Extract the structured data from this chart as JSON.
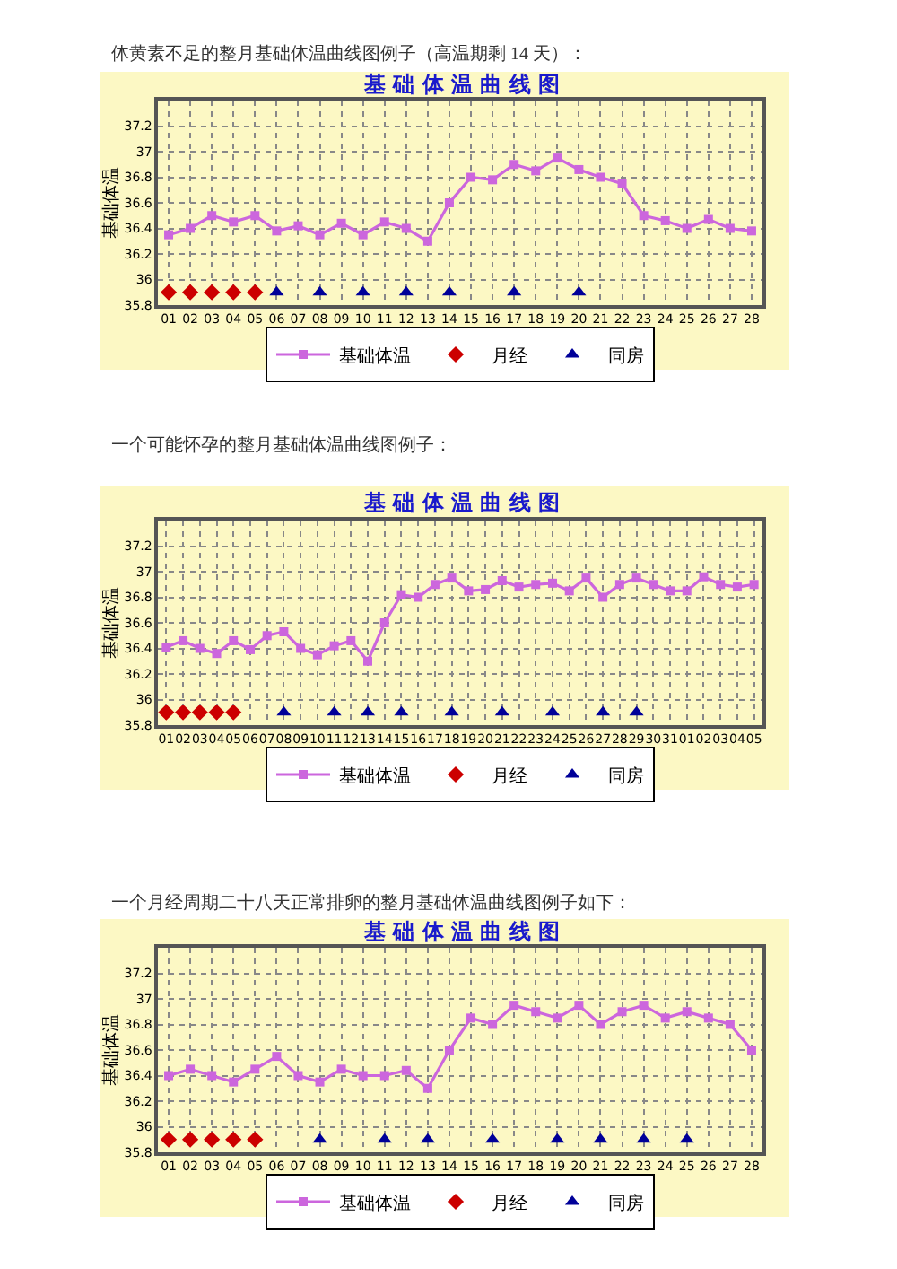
{
  "chart_data": [
    {
      "type": "line",
      "annotations": [
        "体黄素不足的整月基础体温曲线图例子（高温期剩 14 天）："
      ],
      "title": "基 础 体 温 曲 线 图",
      "ylabel": "基础体温",
      "categories": [
        "01",
        "02",
        "03",
        "04",
        "05",
        "06",
        "07",
        "08",
        "09",
        "10",
        "11",
        "12",
        "13",
        "14",
        "15",
        "16",
        "17",
        "18",
        "19",
        "20",
        "21",
        "22",
        "23",
        "24",
        "25",
        "26",
        "27",
        "28"
      ],
      "series": [
        {
          "name": "基础体温",
          "color": "#cc66dd",
          "marker": "square",
          "values": [
            36.35,
            36.4,
            36.5,
            36.45,
            36.5,
            36.38,
            36.42,
            36.35,
            36.44,
            36.35,
            36.45,
            36.4,
            36.3,
            36.6,
            36.8,
            36.78,
            36.9,
            36.85,
            36.95,
            36.86,
            36.8,
            36.75,
            36.5,
            36.46,
            36.4,
            36.47,
            36.4,
            36.38
          ]
        },
        {
          "name": "月经",
          "type": "scatter",
          "color": "#cc0000",
          "marker": "diamond",
          "values": [
            35.9,
            35.9,
            35.9,
            35.9,
            35.9,
            null,
            null,
            null,
            null,
            null,
            null,
            null,
            null,
            null,
            null,
            null,
            null,
            null,
            null,
            null,
            null,
            null,
            null,
            null,
            null,
            null,
            null,
            null
          ]
        },
        {
          "name": "同房",
          "type": "scatter",
          "color": "#000099",
          "marker": "triangle",
          "values": [
            null,
            null,
            null,
            null,
            null,
            35.9,
            null,
            35.9,
            null,
            35.9,
            null,
            35.9,
            null,
            35.9,
            null,
            null,
            35.9,
            null,
            null,
            35.9,
            null,
            null,
            null,
            null,
            null,
            null,
            null,
            null
          ]
        }
      ],
      "ylim": [
        35.8,
        37.4
      ],
      "yticks": [
        35.8,
        36,
        36.2,
        36.4,
        36.6,
        36.8,
        37,
        37.2
      ],
      "grid": true,
      "legend": "bottom",
      "line_style": "solid"
    },
    {
      "type": "line",
      "annotations": [
        "一个可能怀孕的整月基础体温曲线图例子："
      ],
      "title": "基 础 体 温 曲 线 图",
      "ylabel": "基础体温",
      "categories": [
        "01",
        "02",
        "03",
        "04",
        "05",
        "06",
        "07",
        "08",
        "09",
        "10",
        "11",
        "12",
        "13",
        "14",
        "15",
        "16",
        "17",
        "18",
        "19",
        "20",
        "21",
        "22",
        "23",
        "24",
        "25",
        "26",
        "27",
        "28",
        "29",
        "30",
        "31",
        "01",
        "02",
        "03",
        "04",
        "05"
      ],
      "series": [
        {
          "name": "基础体温",
          "color": "#cc66dd",
          "marker": "square",
          "values": [
            36.41,
            36.46,
            36.4,
            36.36,
            36.46,
            36.39,
            36.5,
            36.53,
            36.4,
            36.35,
            36.42,
            36.46,
            36.3,
            36.6,
            36.82,
            36.8,
            36.9,
            36.95,
            36.85,
            36.86,
            36.93,
            36.88,
            36.9,
            36.91,
            36.85,
            36.95,
            36.8,
            36.9,
            36.95,
            36.9,
            36.85,
            36.85,
            36.96,
            36.9,
            36.88,
            36.9
          ]
        },
        {
          "name": "月经",
          "type": "scatter",
          "color": "#cc0000",
          "marker": "diamond",
          "values": [
            35.9,
            35.9,
            35.9,
            35.9,
            35.9,
            null,
            null,
            null,
            null,
            null,
            null,
            null,
            null,
            null,
            null,
            null,
            null,
            null,
            null,
            null,
            null,
            null,
            null,
            null,
            null,
            null,
            null,
            null,
            null,
            null,
            null,
            null,
            null,
            null,
            null,
            null
          ]
        },
        {
          "name": "同房",
          "type": "scatter",
          "color": "#000099",
          "marker": "triangle",
          "values": [
            null,
            null,
            null,
            null,
            null,
            null,
            null,
            35.9,
            null,
            null,
            35.9,
            null,
            35.9,
            null,
            35.9,
            null,
            null,
            35.9,
            null,
            null,
            35.9,
            null,
            null,
            35.9,
            null,
            null,
            35.9,
            null,
            35.9,
            null,
            null,
            null,
            null,
            null,
            null,
            null
          ]
        }
      ],
      "ylim": [
        35.8,
        37.4
      ],
      "yticks": [
        35.8,
        36,
        36.2,
        36.4,
        36.6,
        36.8,
        37,
        37.2
      ],
      "grid": true,
      "legend": "bottom",
      "line_style": "solid"
    },
    {
      "type": "line",
      "annotations": [
        "一个月经周期二十八天正常排卵的整月基础体温曲线图例子如下："
      ],
      "title": "基 础 体 温 曲 线 图",
      "ylabel": "基础体温",
      "categories": [
        "01",
        "02",
        "03",
        "04",
        "05",
        "06",
        "07",
        "08",
        "09",
        "10",
        "11",
        "12",
        "13",
        "14",
        "15",
        "16",
        "17",
        "18",
        "19",
        "20",
        "21",
        "22",
        "23",
        "24",
        "25",
        "26",
        "27",
        "28"
      ],
      "series": [
        {
          "name": "基础体温",
          "color": "#cc66dd",
          "marker": "square",
          "values": [
            36.4,
            36.45,
            36.4,
            36.35,
            36.45,
            36.55,
            36.4,
            36.35,
            36.45,
            36.4,
            36.4,
            36.44,
            36.3,
            36.6,
            36.85,
            36.8,
            36.95,
            36.9,
            36.85,
            36.95,
            36.8,
            36.9,
            36.95,
            36.85,
            36.9,
            36.85,
            36.8,
            36.6
          ]
        },
        {
          "name": "月经",
          "type": "scatter",
          "color": "#cc0000",
          "marker": "diamond",
          "values": [
            35.9,
            35.9,
            35.9,
            35.9,
            35.9,
            null,
            null,
            null,
            null,
            null,
            null,
            null,
            null,
            null,
            null,
            null,
            null,
            null,
            null,
            null,
            null,
            null,
            null,
            null,
            null,
            null,
            null,
            null
          ]
        },
        {
          "name": "同房",
          "type": "scatter",
          "color": "#000099",
          "marker": "triangle",
          "values": [
            null,
            null,
            null,
            null,
            null,
            null,
            null,
            35.9,
            null,
            null,
            35.9,
            null,
            35.9,
            null,
            null,
            35.9,
            null,
            null,
            35.9,
            null,
            35.9,
            null,
            35.9,
            null,
            35.9,
            null,
            null,
            null
          ]
        }
      ],
      "ylim": [
        35.8,
        37.4
      ],
      "yticks": [
        35.8,
        36,
        36.2,
        36.4,
        36.6,
        36.8,
        37,
        37.2
      ],
      "grid": true,
      "legend": "bottom",
      "line_style": "solid"
    }
  ]
}
